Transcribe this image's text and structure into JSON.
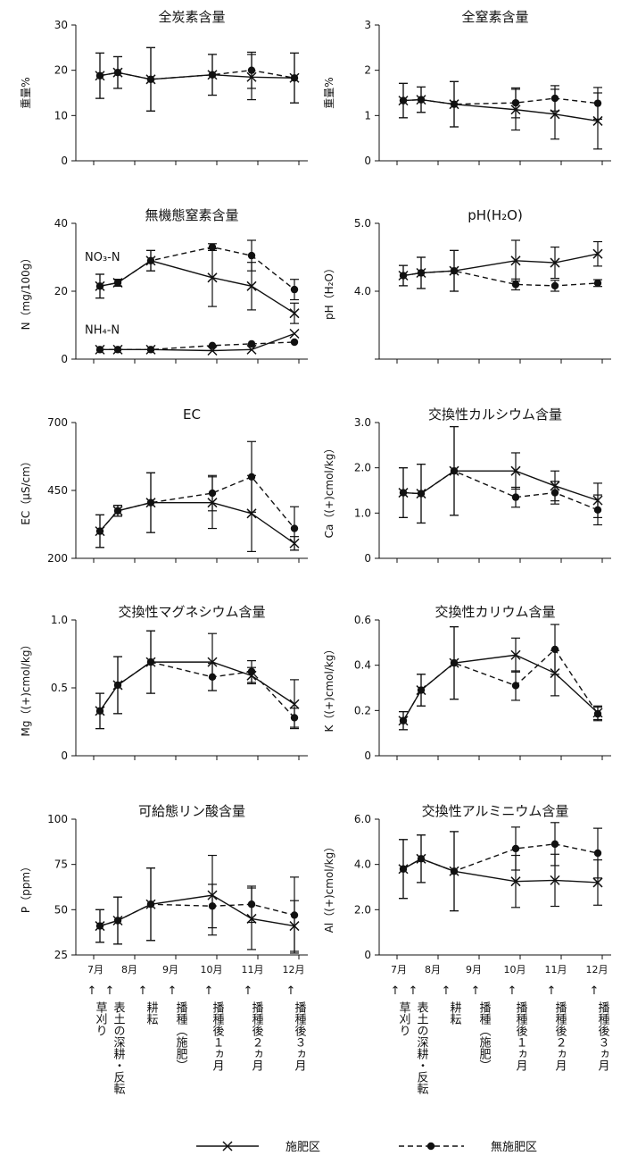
{
  "x_months": [
    "7月",
    "8月",
    "9月",
    "10月",
    "11月",
    "12月"
  ],
  "events": [
    {
      "arrow": "↑",
      "text": "草刈り"
    },
    {
      "arrow": "↑",
      "text": "表土の深耕・反転"
    },
    {
      "arrow": "↑",
      "text": "耕耘"
    },
    {
      "arrow": "↑",
      "text": "播種（施肥）"
    },
    {
      "arrow": "↑",
      "text": "播種後１ヵ月"
    },
    {
      "arrow": "↑",
      "text": "播種後２ヵ月"
    },
    {
      "arrow": "↑",
      "text": "播種後３ヵ月"
    }
  ],
  "legend": {
    "fert": "施肥区",
    "nofert": "無施肥区"
  },
  "colors": {
    "line": "#111111",
    "background": "#ffffff"
  },
  "chart_data": [
    {
      "type": "line",
      "title": "全炭素含量",
      "ylabel": "重量%",
      "yticks": [
        "0",
        "10",
        "20",
        "30"
      ],
      "ylim": [
        0,
        30
      ],
      "series": [
        {
          "name": "施肥区",
          "values": [
            18.8,
            19.5,
            18.0,
            19.0,
            18.5,
            18.3
          ],
          "err": [
            5.0,
            3.5,
            7.0,
            4.5,
            5.0,
            5.5
          ]
        },
        {
          "name": "無施肥区",
          "values": [
            18.8,
            19.5,
            18.0,
            19.0,
            20.0,
            18.3
          ],
          "err": [
            5.0,
            3.5,
            7.0,
            4.5,
            4.0,
            5.5
          ]
        }
      ]
    },
    {
      "type": "line",
      "title": "全窒素含量",
      "ylabel": "重量%",
      "yticks": [
        "0",
        "1",
        "2",
        "3"
      ],
      "ylim": [
        0,
        3
      ],
      "series": [
        {
          "name": "施肥区",
          "values": [
            1.33,
            1.35,
            1.25,
            1.13,
            1.03,
            0.88
          ],
          "err": [
            0.38,
            0.28,
            0.5,
            0.45,
            0.55,
            0.62
          ]
        },
        {
          "name": "無施肥区",
          "values": [
            1.33,
            1.35,
            1.25,
            1.28,
            1.38,
            1.27
          ],
          "err": [
            0.38,
            0.28,
            0.5,
            0.33,
            0.28,
            0.35
          ]
        }
      ]
    },
    {
      "type": "line",
      "title": "無機態窒素含量",
      "ylabel": "N（mg/100g）",
      "yticks": [
        "0",
        "20",
        "40"
      ],
      "ylim": [
        0,
        40
      ],
      "annotations": [
        "NO₃-N",
        "NH₄-N"
      ],
      "series": [
        {
          "name": "施肥区 NO₃-N",
          "values": [
            21.5,
            22.5,
            29.0,
            24.0,
            21.5,
            13.5
          ],
          "err": [
            3.5,
            1.0,
            3.0,
            8.5,
            7.0,
            3.0
          ]
        },
        {
          "name": "無施肥区 NO₃-N",
          "values": [
            21.5,
            22.5,
            29.0,
            33.0,
            30.5,
            20.5
          ],
          "err": [
            3.5,
            1.0,
            3.0,
            1.0,
            4.5,
            3.0
          ]
        },
        {
          "name": "施肥区 NH₄-N",
          "values": [
            2.8,
            2.8,
            2.8,
            2.5,
            2.8,
            7.5
          ],
          "err": [
            0,
            0,
            0,
            0,
            0,
            0
          ]
        },
        {
          "name": "無施肥区 NH₄-N",
          "values": [
            2.8,
            2.8,
            2.8,
            4.0,
            4.5,
            5.0
          ],
          "err": [
            0,
            0,
            0,
            0,
            0,
            0
          ]
        }
      ]
    },
    {
      "type": "line",
      "title": "pH(H₂O)",
      "ylabel": "pH（H₂O）",
      "yticks": [
        "",
        "4.0",
        "5.0"
      ],
      "ylim": [
        3.0,
        5.0
      ],
      "series": [
        {
          "name": "施肥区",
          "values": [
            4.23,
            4.27,
            4.3,
            4.45,
            4.42,
            4.55
          ],
          "err": [
            0.15,
            0.23,
            0.3,
            0.3,
            0.23,
            0.18
          ]
        },
        {
          "name": "無施肥区",
          "values": [
            4.23,
            4.27,
            4.3,
            4.1,
            4.08,
            4.12
          ],
          "err": [
            0.15,
            0.23,
            0.3,
            0.08,
            0.08,
            0.05
          ]
        }
      ]
    },
    {
      "type": "line",
      "title": "EC",
      "ylabel": "EC（μS/cm）",
      "yticks": [
        "200",
        "450",
        "700"
      ],
      "ylim": [
        200,
        700
      ],
      "series": [
        {
          "name": "施肥区",
          "values": [
            300,
            375,
            405,
            405,
            365,
            255
          ],
          "err": [
            60,
            20,
            110,
            95,
            140,
            25
          ]
        },
        {
          "name": "無施肥区",
          "values": [
            300,
            375,
            405,
            440,
            500,
            310
          ],
          "err": [
            60,
            20,
            110,
            65,
            130,
            80
          ]
        }
      ]
    },
    {
      "type": "line",
      "title": "交換性カルシウム含量",
      "ylabel": "Ca（(+)cmol/kg）",
      "yticks": [
        "0",
        "1.0",
        "2.0",
        "3.0"
      ],
      "ylim": [
        0,
        3
      ],
      "series": [
        {
          "name": "施肥区",
          "values": [
            1.45,
            1.43,
            1.93,
            1.93,
            1.6,
            1.28
          ],
          "err": [
            0.55,
            0.65,
            0.98,
            0.4,
            0.33,
            0.38
          ]
        },
        {
          "name": "無施肥区",
          "values": [
            1.45,
            1.43,
            1.93,
            1.35,
            1.45,
            1.07
          ],
          "err": [
            0.55,
            0.65,
            0.98,
            0.22,
            0.25,
            0.33
          ]
        }
      ]
    },
    {
      "type": "line",
      "title": "交換性マグネシウム含量",
      "ylabel": "Mg（(+)cmol/kg）",
      "yticks": [
        "0",
        "0.5",
        "1.0"
      ],
      "ylim": [
        0,
        1
      ],
      "series": [
        {
          "name": "施肥区",
          "values": [
            0.33,
            0.52,
            0.69,
            0.69,
            0.59,
            0.38
          ],
          "err": [
            0.13,
            0.21,
            0.23,
            0.21,
            0.06,
            0.18
          ]
        },
        {
          "name": "無施肥区",
          "values": [
            0.33,
            0.52,
            0.69,
            0.58,
            0.62,
            0.28
          ],
          "err": [
            0.13,
            0.21,
            0.23,
            0.1,
            0.08,
            0.07
          ]
        }
      ]
    },
    {
      "type": "line",
      "title": "交換性カリウム含量",
      "ylabel": "K（(+)cmol/kg）",
      "yticks": [
        "0",
        "0.2",
        "0.4",
        "0.6"
      ],
      "ylim": [
        0,
        0.6
      ],
      "series": [
        {
          "name": "施肥区",
          "values": [
            0.155,
            0.29,
            0.41,
            0.445,
            0.365,
            0.19
          ],
          "err": [
            0.04,
            0.07,
            0.16,
            0.075,
            0.1,
            0.03
          ]
        },
        {
          "name": "無施肥区",
          "values": [
            0.155,
            0.29,
            0.41,
            0.31,
            0.47,
            0.185
          ],
          "err": [
            0.04,
            0.07,
            0.16,
            0.065,
            0.11,
            0.03
          ]
        }
      ]
    },
    {
      "type": "line",
      "title": "可給態リン酸含量",
      "ylabel": "P（ppm）",
      "yticks": [
        "25",
        "50",
        "75",
        "100"
      ],
      "ylim": [
        25,
        100
      ],
      "series": [
        {
          "name": "施肥区",
          "values": [
            41,
            44,
            53,
            58,
            45,
            41
          ],
          "err": [
            9,
            13,
            20,
            22,
            17,
            14
          ]
        },
        {
          "name": "無施肥区",
          "values": [
            41,
            44,
            53,
            52,
            53,
            47
          ],
          "err": [
            9,
            13,
            20,
            12,
            10,
            21
          ]
        }
      ]
    },
    {
      "type": "line",
      "title": "交換性アルミニウム含量",
      "ylabel": "Al（(+)cmol/kg）",
      "yticks": [
        "0",
        "2.0",
        "4.0",
        "6.0"
      ],
      "ylim": [
        0,
        6
      ],
      "series": [
        {
          "name": "施肥区",
          "values": [
            3.8,
            4.25,
            3.7,
            3.25,
            3.3,
            3.2
          ],
          "err": [
            1.3,
            1.05,
            1.75,
            1.15,
            1.15,
            1.0
          ]
        },
        {
          "name": "無施肥区",
          "values": [
            3.8,
            4.25,
            3.7,
            4.7,
            4.9,
            4.5
          ],
          "err": [
            1.3,
            1.05,
            1.75,
            0.95,
            0.95,
            1.1
          ]
        }
      ]
    }
  ]
}
